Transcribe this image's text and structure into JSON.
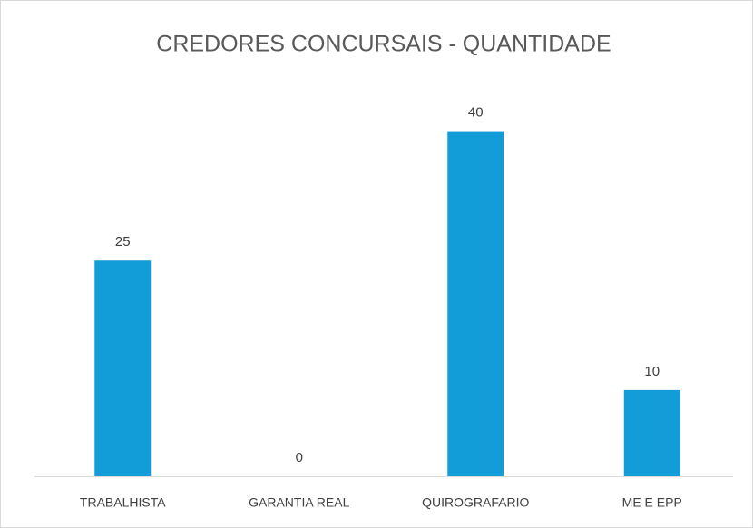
{
  "chart_data": {
    "type": "bar",
    "title": "CREDORES CONCURSAIS - QUANTIDADE",
    "categories": [
      "TRABALHISTA",
      "GARANTIA REAL",
      "QUIROGRAFARIO",
      "ME E EPP"
    ],
    "values": [
      25,
      0,
      40,
      10
    ],
    "color": "#139dd8",
    "ylim": [
      0,
      45
    ],
    "grid": false
  }
}
